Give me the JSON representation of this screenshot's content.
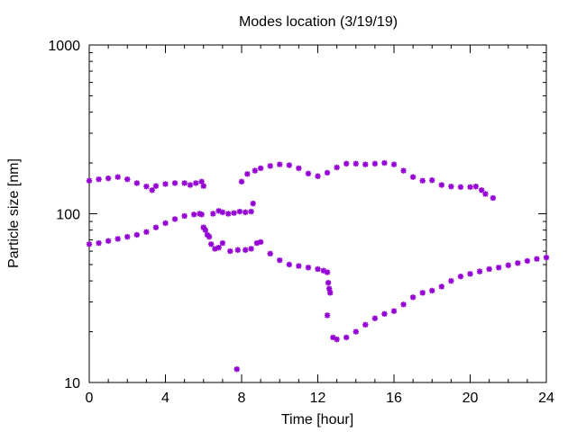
{
  "chart_data": {
    "type": "scatter",
    "title": "Modes location (3/19/19)",
    "xlabel": "Time [hour]",
    "ylabel": "Particle size [nm]",
    "xlim": [
      0,
      24
    ],
    "ylim": [
      10,
      1000
    ],
    "yscale": "log",
    "grid": false,
    "legend": "none",
    "marker": "asterisk",
    "color": "#9400d3",
    "xticks": [
      0,
      4,
      8,
      12,
      16,
      20,
      24
    ],
    "yticks": [
      10,
      100,
      1000
    ],
    "series": [
      {
        "x": [
          0.0,
          0.5,
          1.0,
          1.5,
          2.0,
          2.5,
          3.0,
          3.3,
          3.5,
          4.0,
          4.5,
          5.0,
          5.3,
          5.6,
          5.9,
          6.0,
          8.0,
          8.3,
          8.7,
          9.0,
          9.5,
          10.0,
          10.5,
          11.0,
          11.5,
          12.0,
          12.5,
          13.0,
          13.5,
          14.0,
          14.5,
          15.0,
          15.5,
          16.0,
          16.5,
          17.0,
          17.5,
          18.0,
          18.5,
          19.0,
          19.5,
          20.0,
          20.3,
          20.6,
          20.8,
          21.2
        ],
        "y": [
          157,
          160,
          162,
          165,
          160,
          152,
          145,
          138,
          146,
          150,
          152,
          152,
          148,
          152,
          155,
          146,
          155,
          172,
          180,
          186,
          192,
          196,
          194,
          186,
          173,
          167,
          175,
          188,
          198,
          198,
          196,
          198,
          200,
          196,
          180,
          165,
          157,
          158,
          148,
          145,
          144,
          144,
          145,
          138,
          131,
          124
        ]
      },
      {
        "x": [
          0.0,
          0.5,
          1.0,
          1.5,
          2.0,
          2.5,
          3.0,
          3.5,
          4.0,
          4.5,
          5.0,
          5.5,
          5.8,
          6.0,
          6.2,
          6.4,
          6.6,
          6.8,
          7.0,
          7.4,
          7.8,
          8.2,
          8.5,
          8.8,
          9.0,
          9.5,
          10.0,
          10.5,
          11.0,
          11.5,
          12.0,
          12.3,
          12.5,
          12.8,
          13.0,
          13.5,
          14.0,
          14.5,
          15.0,
          15.5,
          16.0,
          16.5,
          17.0,
          17.5,
          18.0,
          18.5,
          19.0,
          19.5,
          20.0,
          20.5,
          21.0,
          21.5,
          22.0,
          22.5,
          23.0,
          23.5,
          24.0
        ],
        "y": [
          66,
          67,
          69,
          71,
          73,
          75,
          78,
          83,
          88,
          93,
          97,
          99,
          100,
          83,
          75,
          66,
          62,
          63,
          67,
          60,
          61,
          61,
          62,
          67,
          68,
          58,
          53,
          50,
          49,
          48,
          47,
          46,
          45,
          18.5,
          18,
          18.5,
          20,
          22,
          24,
          25.5,
          26.5,
          29,
          32,
          34,
          35,
          37,
          40,
          42.5,
          44,
          45.5,
          47,
          48,
          49.5,
          51,
          52.5,
          54,
          55
        ]
      },
      {
        "x": [
          5.9,
          6.0,
          6.1,
          6.3,
          6.5,
          6.8,
          7.0,
          7.3,
          7.6,
          7.9,
          8.2,
          8.5,
          8.6,
          12.5,
          12.55,
          12.6,
          12.65,
          7.75
        ],
        "y": [
          99,
          83,
          80,
          73,
          100,
          104,
          102,
          100,
          101,
          103,
          102,
          103,
          115,
          25,
          39,
          36,
          34,
          12
        ]
      }
    ]
  }
}
